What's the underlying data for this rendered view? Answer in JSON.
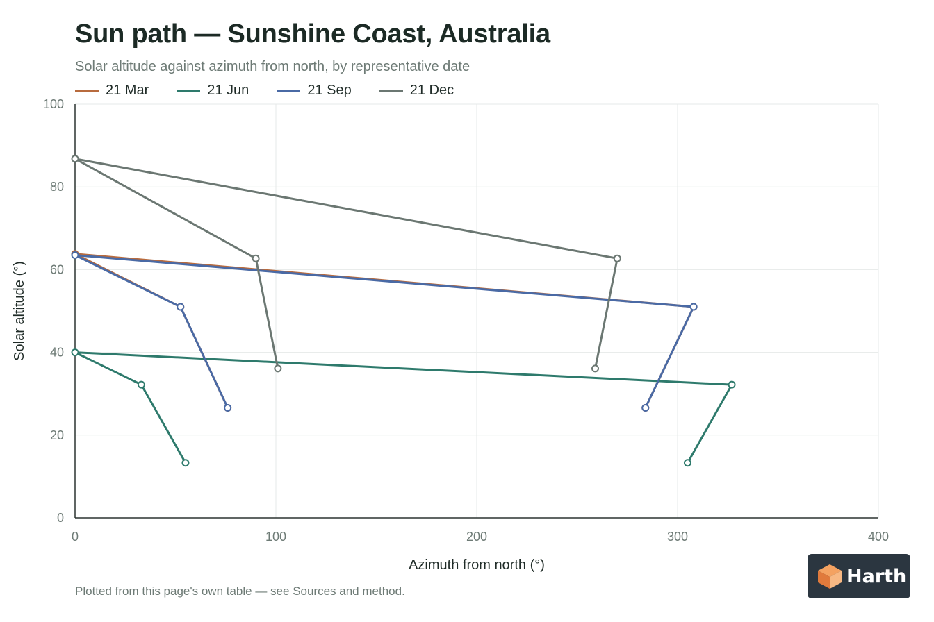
{
  "chart_data": {
    "type": "line",
    "title": "Sun path — Sunshine Coast, Australia",
    "subtitle": "Solar altitude against azimuth from north, by representative date",
    "xlabel": "Azimuth from north (°)",
    "ylabel": "Solar altitude (°)",
    "xlim": [
      0,
      400
    ],
    "ylim": [
      0,
      100
    ],
    "xticks": [
      0,
      100,
      200,
      300,
      400
    ],
    "yticks": [
      0,
      20,
      40,
      60,
      80,
      100
    ],
    "grid": true,
    "legend_position": "top-left",
    "series": [
      {
        "name": "21 Mar",
        "color": "#b86b3e",
        "points": [
          [
            76,
            26.6
          ],
          [
            52.5,
            51
          ],
          [
            0,
            63.8
          ],
          [
            308,
            51
          ],
          [
            284,
            26.6
          ]
        ]
      },
      {
        "name": "21 Jun",
        "color": "#2e7a6c",
        "points": [
          [
            55,
            13.3
          ],
          [
            33,
            32.2
          ],
          [
            0,
            40
          ],
          [
            327,
            32.2
          ],
          [
            305,
            13.3
          ]
        ]
      },
      {
        "name": "21 Sep",
        "color": "#4a6aa5",
        "points": [
          [
            76,
            26.6
          ],
          [
            52.5,
            51
          ],
          [
            0,
            63.5
          ],
          [
            308,
            51
          ],
          [
            284,
            26.6
          ]
        ]
      },
      {
        "name": "21 Dec",
        "color": "#6b7772",
        "points": [
          [
            101,
            36.1
          ],
          [
            90,
            62.7
          ],
          [
            0,
            86.8
          ],
          [
            270,
            62.7
          ],
          [
            259,
            36.1
          ]
        ]
      }
    ]
  },
  "footnote": "Plotted from this page's own table — see Sources and method.",
  "logo": {
    "text": "Harth",
    "icon": "cube-logo-icon",
    "accent": "#f4a261"
  }
}
